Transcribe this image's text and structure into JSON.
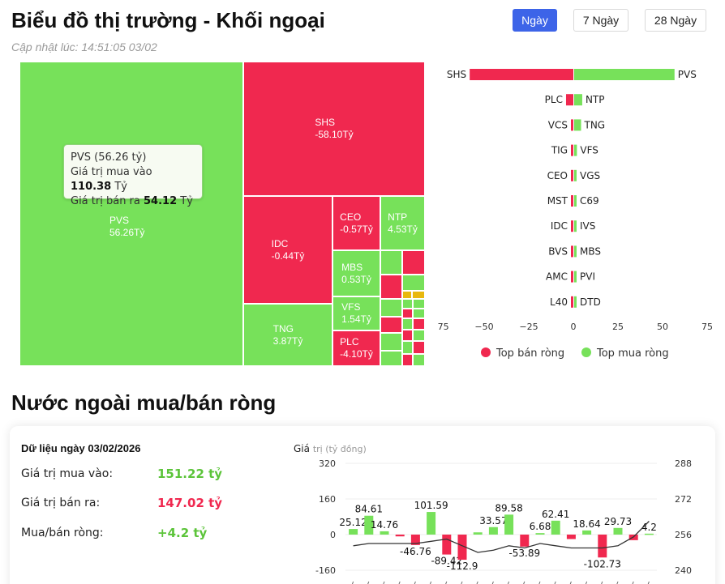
{
  "header": {
    "title": "Biểu đồ thị trường - Khối ngoại",
    "updated": "Cập nhật lúc: 14:51:05 03/02",
    "tabs": [
      "Ngày",
      "7 Ngày",
      "28 Ngày"
    ],
    "active_tab": "Ngày"
  },
  "tooltip": {
    "line1": "PVS (56.26 tỷ)",
    "line2_label": "Giá trị mua vào",
    "line2_value": "110.38",
    "line2_unit": "Tỷ",
    "line3_label": "Giá trị bán ra",
    "line3_value": "54.12",
    "line3_unit": "Tỷ"
  },
  "colors": {
    "green": "#77e15a",
    "red": "#f0284f",
    "yellow": "#e8b80e",
    "blue": "#3d64e8"
  },
  "chart_data": [
    {
      "type": "treemap",
      "unit": "Tỷ",
      "tiles": [
        {
          "name": "PVS",
          "value": 56.26,
          "label": "56.26Tỷ"
        },
        {
          "name": "SHS",
          "value": -58.1,
          "label": "-58.10Tỷ"
        },
        {
          "name": "IDC",
          "value": -0.44,
          "label": "-0.44Tỷ"
        },
        {
          "name": "TNG",
          "value": 3.87,
          "label": "3.87Tỷ"
        },
        {
          "name": "CEO",
          "value": -0.57,
          "label": "-0.57Tỷ"
        },
        {
          "name": "NTP",
          "value": 4.53,
          "label": "4.53Tỷ"
        },
        {
          "name": "MBS",
          "value": 0.53,
          "label": "0.53Tỷ"
        },
        {
          "name": "VFS",
          "value": 1.54,
          "label": "1.54Tỷ"
        },
        {
          "name": "PLC",
          "value": -4.1,
          "label": "-4.10Tỷ"
        }
      ]
    },
    {
      "type": "bar",
      "orientation": "horizontal-diverging",
      "sell_labels": [
        "SHS",
        "PLC",
        "VCS",
        "TIG",
        "CEO",
        "MST",
        "IDC",
        "BVS",
        "AMC",
        "L40"
      ],
      "sell_values": [
        -58.1,
        -4.1,
        -0.9,
        -0.6,
        -0.57,
        -0.5,
        -0.44,
        -0.3,
        -0.2,
        -0.1
      ],
      "buy_labels": [
        "PVS",
        "NTP",
        "TNG",
        "VFS",
        "VGS",
        "C69",
        "IVS",
        "MBS",
        "PVI",
        "DTD"
      ],
      "buy_values": [
        56.26,
        4.53,
        3.87,
        1.54,
        1.2,
        1.0,
        0.8,
        0.53,
        0.3,
        0.2
      ],
      "xlim": [
        -75,
        75
      ],
      "xticks": [
        -75,
        -50,
        -25,
        0,
        25,
        50,
        75
      ],
      "legend": [
        "Top bán ròng",
        "Top mua ròng"
      ],
      "legend_position": "bottom"
    },
    {
      "type": "bar+line",
      "ylabel": "Giá trị (tỷ đồng)",
      "ylim": [
        -160,
        320
      ],
      "yticks_left": [
        "320",
        "160",
        "0",
        "-160"
      ],
      "yticks_right": [
        "288",
        "272",
        "256",
        "240"
      ],
      "y2lim": [
        240,
        288
      ],
      "values": [
        25.12,
        84.61,
        14.76,
        -8,
        -46.76,
        101.59,
        -89.42,
        -112.9,
        10,
        33.57,
        89.58,
        -53.89,
        6.68,
        62.41,
        -20,
        18.64,
        -102.73,
        29.73,
        -25,
        4.2
      ],
      "labels": [
        "25.12",
        "84.61",
        "14.76",
        "",
        "-46.76",
        "101.59",
        "-89.42",
        "-112.9",
        "",
        "33.57",
        "89.58",
        "-53.89",
        "6.68",
        "62.41",
        "",
        "18.64",
        "-102.73",
        "29.73",
        "",
        "4.2"
      ],
      "line": [
        251,
        252,
        252,
        252,
        252,
        253,
        254,
        251,
        248,
        249,
        251,
        250,
        252,
        251,
        250,
        250,
        250,
        251,
        255,
        262
      ]
    }
  ],
  "net_section": {
    "title": "Nước ngoài mua/bán ròng",
    "date_label": "Dữ liệu ngày 03/02/2026",
    "rows": [
      {
        "label": "Giá trị mua vào:",
        "value": "151.22 tỷ",
        "color": "#5cc43a"
      },
      {
        "label": "Giá trị bán ra:",
        "value": "147.02 tỷ",
        "color": "#f0284f"
      },
      {
        "label": "Mua/bán ròng:",
        "value": "+4.2 tỷ",
        "color": "#5cc43a"
      }
    ]
  }
}
